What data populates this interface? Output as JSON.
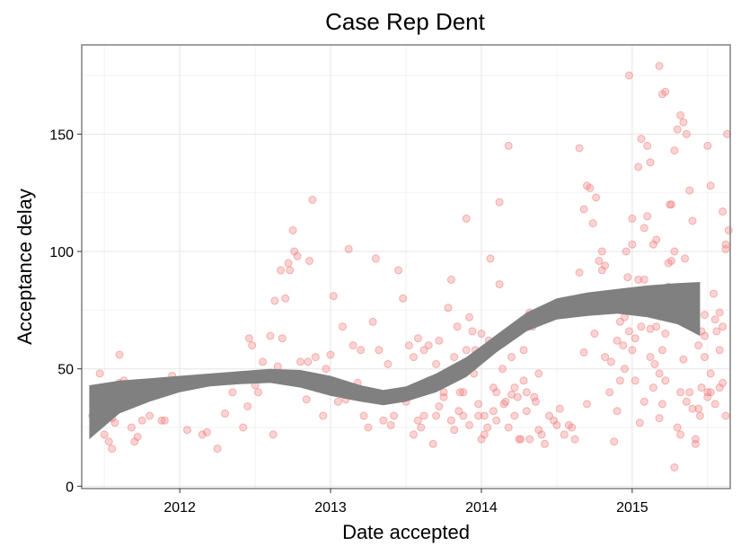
{
  "chart_data": {
    "type": "scatter",
    "title": "Case Rep Dent",
    "xlabel": "Date accepted",
    "ylabel": "Acceptance delay",
    "xlim": [
      2011.35,
      2015.65
    ],
    "ylim": [
      -1,
      188
    ],
    "x_ticks": [
      {
        "value": 2012,
        "label": "2012"
      },
      {
        "value": 2013,
        "label": "2013"
      },
      {
        "value": 2014,
        "label": "2014"
      },
      {
        "value": 2015,
        "label": "2015"
      }
    ],
    "y_ticks": [
      {
        "value": 0,
        "label": "0"
      },
      {
        "value": 50,
        "label": "50"
      },
      {
        "value": 100,
        "label": "100"
      },
      {
        "value": 150,
        "label": "150"
      }
    ],
    "grid": true,
    "point_color": "#f08080",
    "band_color": "#808080",
    "smooth_band": {
      "x": [
        2011.4,
        2011.6,
        2011.8,
        2012.0,
        2012.2,
        2012.4,
        2012.6,
        2012.8,
        2013.0,
        2013.2,
        2013.35,
        2013.5,
        2013.7,
        2013.9,
        2014.1,
        2014.3,
        2014.5,
        2014.7,
        2014.9,
        2015.1,
        2015.3,
        2015.45
      ],
      "lower": [
        20,
        31,
        36,
        40,
        42.5,
        43.5,
        44,
        42,
        38.5,
        36,
        34.5,
        36,
        40,
        46.5,
        57,
        66,
        71,
        72.5,
        73.5,
        72,
        69,
        64
      ],
      "upper": [
        43,
        45,
        46,
        47,
        48,
        49,
        50,
        49.5,
        47,
        43,
        41,
        42.5,
        48,
        55,
        64.5,
        74,
        80,
        82.5,
        84,
        85.5,
        86.5,
        87
      ]
    },
    "points": [
      [
        2011.42,
        30
      ],
      [
        2011.43,
        28
      ],
      [
        2011.45,
        35
      ],
      [
        2011.47,
        48
      ],
      [
        2011.48,
        32
      ],
      [
        2011.5,
        22
      ],
      [
        2011.52,
        41
      ],
      [
        2011.53,
        19
      ],
      [
        2011.55,
        16
      ],
      [
        2011.57,
        27
      ],
      [
        2011.58,
        35
      ],
      [
        2011.6,
        56
      ],
      [
        2011.62,
        37
      ],
      [
        2011.65,
        38
      ],
      [
        2011.68,
        25
      ],
      [
        2011.7,
        19
      ],
      [
        2011.72,
        21
      ],
      [
        2011.75,
        28
      ],
      [
        2011.8,
        30
      ],
      [
        2011.6,
        44
      ],
      [
        2011.45,
        38
      ],
      [
        2011.5,
        42
      ],
      [
        2011.55,
        29
      ],
      [
        2011.63,
        45
      ],
      [
        2011.88,
        28
      ],
      [
        2011.9,
        28
      ],
      [
        2011.95,
        47
      ],
      [
        2011.98,
        45
      ],
      [
        2012.05,
        24
      ],
      [
        2012.1,
        44
      ],
      [
        2012.15,
        22
      ],
      [
        2012.18,
        23
      ],
      [
        2012.25,
        16
      ],
      [
        2012.3,
        31
      ],
      [
        2012.35,
        40
      ],
      [
        2012.38,
        47
      ],
      [
        2012.42,
        25
      ],
      [
        2012.45,
        34
      ],
      [
        2012.46,
        63
      ],
      [
        2012.48,
        60
      ],
      [
        2012.5,
        43
      ],
      [
        2012.52,
        40
      ],
      [
        2012.55,
        53
      ],
      [
        2012.6,
        64
      ],
      [
        2012.62,
        22
      ],
      [
        2012.63,
        79
      ],
      [
        2012.65,
        51
      ],
      [
        2012.67,
        92
      ],
      [
        2012.68,
        63
      ],
      [
        2012.7,
        80
      ],
      [
        2012.72,
        95
      ],
      [
        2012.73,
        92
      ],
      [
        2012.75,
        109
      ],
      [
        2012.76,
        100
      ],
      [
        2012.78,
        98
      ],
      [
        2012.8,
        53
      ],
      [
        2012.82,
        45
      ],
      [
        2012.84,
        37
      ],
      [
        2012.85,
        53
      ],
      [
        2012.86,
        96
      ],
      [
        2012.88,
        122
      ],
      [
        2012.9,
        55
      ],
      [
        2012.92,
        42
      ],
      [
        2012.95,
        30
      ],
      [
        2012.97,
        50
      ],
      [
        2013.0,
        56
      ],
      [
        2013.02,
        81
      ],
      [
        2013.05,
        36
      ],
      [
        2013.08,
        68
      ],
      [
        2013.1,
        37
      ],
      [
        2013.12,
        101
      ],
      [
        2013.15,
        60
      ],
      [
        2013.18,
        44
      ],
      [
        2013.2,
        58
      ],
      [
        2013.22,
        30
      ],
      [
        2013.25,
        25
      ],
      [
        2013.28,
        70
      ],
      [
        2013.3,
        97
      ],
      [
        2013.32,
        58
      ],
      [
        2013.35,
        28
      ],
      [
        2013.38,
        52
      ],
      [
        2013.4,
        26
      ],
      [
        2013.42,
        30
      ],
      [
        2013.45,
        92
      ],
      [
        2013.48,
        80
      ],
      [
        2013.5,
        36
      ],
      [
        2013.52,
        60
      ],
      [
        2013.55,
        22
      ],
      [
        2013.58,
        28
      ],
      [
        2013.6,
        40
      ],
      [
        2013.62,
        30
      ],
      [
        2013.65,
        60
      ],
      [
        2013.68,
        18
      ],
      [
        2013.7,
        52
      ],
      [
        2013.72,
        62
      ],
      [
        2013.75,
        38
      ],
      [
        2013.78,
        45
      ],
      [
        2013.8,
        28
      ],
      [
        2013.82,
        24
      ],
      [
        2013.85,
        32
      ],
      [
        2013.88,
        40
      ],
      [
        2013.9,
        58
      ],
      [
        2013.92,
        26
      ],
      [
        2013.95,
        48
      ],
      [
        2013.98,
        35
      ],
      [
        2014.0,
        20
      ],
      [
        2014.02,
        30
      ],
      [
        2014.05,
        62
      ],
      [
        2014.08,
        42
      ],
      [
        2014.1,
        28
      ],
      [
        2014.12,
        86
      ],
      [
        2014.15,
        35
      ],
      [
        2014.18,
        25
      ],
      [
        2014.2,
        39
      ],
      [
        2014.22,
        42
      ],
      [
        2014.25,
        20
      ],
      [
        2014.28,
        58
      ],
      [
        2014.3,
        40
      ],
      [
        2014.32,
        20
      ],
      [
        2014.35,
        38
      ],
      [
        2014.38,
        24
      ],
      [
        2014.4,
        22
      ],
      [
        2014.42,
        18
      ],
      [
        2014.45,
        30
      ],
      [
        2014.48,
        28
      ],
      [
        2014.5,
        26
      ],
      [
        2014.52,
        33
      ],
      [
        2014.55,
        22
      ],
      [
        2014.58,
        26
      ],
      [
        2014.6,
        25
      ],
      [
        2014.62,
        20
      ],
      [
        2014.65,
        91
      ],
      [
        2014.68,
        57
      ],
      [
        2014.7,
        35
      ],
      [
        2014.72,
        80
      ],
      [
        2014.75,
        65
      ],
      [
        2014.78,
        76
      ],
      [
        2014.8,
        92
      ],
      [
        2014.82,
        55
      ],
      [
        2014.85,
        40
      ],
      [
        2014.88,
        75
      ],
      [
        2014.9,
        32
      ],
      [
        2014.92,
        70
      ],
      [
        2014.95,
        50
      ],
      [
        2014.97,
        89
      ],
      [
        2015.0,
        114
      ],
      [
        2015.02,
        63
      ],
      [
        2015.05,
        27
      ],
      [
        2015.08,
        36
      ],
      [
        2015.1,
        145
      ],
      [
        2015.12,
        67
      ],
      [
        2015.15,
        52
      ],
      [
        2015.18,
        29
      ],
      [
        2015.2,
        58
      ],
      [
        2015.22,
        45
      ],
      [
        2015.25,
        120
      ],
      [
        2015.28,
        8
      ],
      [
        2015.3,
        25
      ],
      [
        2015.32,
        22
      ],
      [
        2015.35,
        97
      ],
      [
        2015.38,
        40
      ],
      [
        2015.4,
        33
      ],
      [
        2015.42,
        20
      ],
      [
        2015.45,
        30
      ],
      [
        2015.48,
        55
      ],
      [
        2015.5,
        38
      ],
      [
        2015.52,
        40
      ],
      [
        2015.55,
        35
      ],
      [
        2015.58,
        42
      ],
      [
        2015.6,
        44
      ],
      [
        2015.62,
        30
      ],
      [
        2014.65,
        144
      ],
      [
        2014.68,
        118
      ],
      [
        2014.7,
        128
      ],
      [
        2014.72,
        127
      ],
      [
        2014.74,
        112
      ],
      [
        2014.76,
        123
      ],
      [
        2014.78,
        96
      ],
      [
        2014.8,
        100
      ],
      [
        2014.82,
        94
      ],
      [
        2014.84,
        80
      ],
      [
        2014.86,
        53
      ],
      [
        2014.88,
        19
      ],
      [
        2014.9,
        62
      ],
      [
        2014.92,
        45
      ],
      [
        2014.94,
        60
      ],
      [
        2014.96,
        100
      ],
      [
        2014.98,
        175
      ],
      [
        2015.0,
        103
      ],
      [
        2015.02,
        76
      ],
      [
        2015.04,
        136
      ],
      [
        2015.06,
        148
      ],
      [
        2015.08,
        110
      ],
      [
        2015.1,
        115
      ],
      [
        2015.12,
        138
      ],
      [
        2015.14,
        103
      ],
      [
        2015.16,
        105
      ],
      [
        2015.18,
        179
      ],
      [
        2015.2,
        167
      ],
      [
        2015.22,
        168
      ],
      [
        2015.24,
        95
      ],
      [
        2015.26,
        120
      ],
      [
        2015.28,
        143
      ],
      [
        2015.3,
        152
      ],
      [
        2015.32,
        158
      ],
      [
        2015.34,
        155
      ],
      [
        2015.36,
        150
      ],
      [
        2015.38,
        126
      ],
      [
        2015.4,
        113
      ],
      [
        2015.42,
        18
      ],
      [
        2015.44,
        33
      ],
      [
        2015.46,
        42
      ],
      [
        2015.48,
        64
      ],
      [
        2015.5,
        145
      ],
      [
        2015.52,
        128
      ],
      [
        2015.54,
        82
      ],
      [
        2015.56,
        66
      ],
      [
        2015.58,
        74
      ],
      [
        2015.6,
        117
      ],
      [
        2015.62,
        101
      ],
      [
        2015.63,
        150
      ],
      [
        2015.64,
        109
      ],
      [
        2015.62,
        103
      ],
      [
        2015.6,
        68
      ],
      [
        2015.58,
        58
      ],
      [
        2015.55,
        71
      ],
      [
        2015.52,
        48
      ],
      [
        2015.5,
        40
      ],
      [
        2014.95,
        72
      ],
      [
        2014.98,
        66
      ],
      [
        2015.0,
        58
      ],
      [
        2015.02,
        45
      ],
      [
        2015.04,
        88
      ],
      [
        2015.06,
        68
      ],
      [
        2015.08,
        88
      ],
      [
        2015.12,
        55
      ],
      [
        2015.14,
        42
      ],
      [
        2015.16,
        68
      ],
      [
        2015.18,
        48
      ],
      [
        2015.2,
        35
      ],
      [
        2015.22,
        65
      ],
      [
        2015.24,
        85
      ],
      [
        2015.26,
        96
      ],
      [
        2015.28,
        100
      ],
      [
        2015.3,
        78
      ],
      [
        2015.32,
        40
      ],
      [
        2015.34,
        54
      ],
      [
        2015.36,
        36
      ],
      [
        2015.38,
        78
      ],
      [
        2015.4,
        68
      ],
      [
        2015.42,
        82
      ],
      [
        2015.44,
        60
      ],
      [
        2015.46,
        66
      ],
      [
        2015.48,
        73
      ],
      [
        2013.55,
        55
      ],
      [
        2013.58,
        63
      ],
      [
        2013.6,
        25
      ],
      [
        2013.62,
        58
      ],
      [
        2013.65,
        45
      ],
      [
        2013.7,
        30
      ],
      [
        2013.72,
        34
      ],
      [
        2013.75,
        40
      ],
      [
        2013.78,
        76
      ],
      [
        2013.8,
        88
      ],
      [
        2013.82,
        55
      ],
      [
        2013.84,
        68
      ],
      [
        2013.86,
        40
      ],
      [
        2013.88,
        30
      ],
      [
        2013.9,
        114
      ],
      [
        2013.92,
        72
      ],
      [
        2013.94,
        66
      ],
      [
        2013.96,
        58
      ],
      [
        2013.98,
        30
      ],
      [
        2014.0,
        65
      ],
      [
        2014.02,
        22
      ],
      [
        2014.04,
        25
      ],
      [
        2014.06,
        97
      ],
      [
        2014.08,
        32
      ],
      [
        2014.1,
        40
      ],
      [
        2014.12,
        121
      ],
      [
        2014.14,
        50
      ],
      [
        2014.16,
        36
      ],
      [
        2014.18,
        145
      ],
      [
        2014.2,
        55
      ],
      [
        2014.22,
        30
      ],
      [
        2014.24,
        38
      ],
      [
        2014.26,
        20
      ],
      [
        2014.28,
        45
      ],
      [
        2014.3,
        32
      ],
      [
        2014.32,
        74
      ],
      [
        2014.34,
        68
      ],
      [
        2014.36,
        36
      ],
      [
        2014.38,
        48
      ]
    ]
  }
}
